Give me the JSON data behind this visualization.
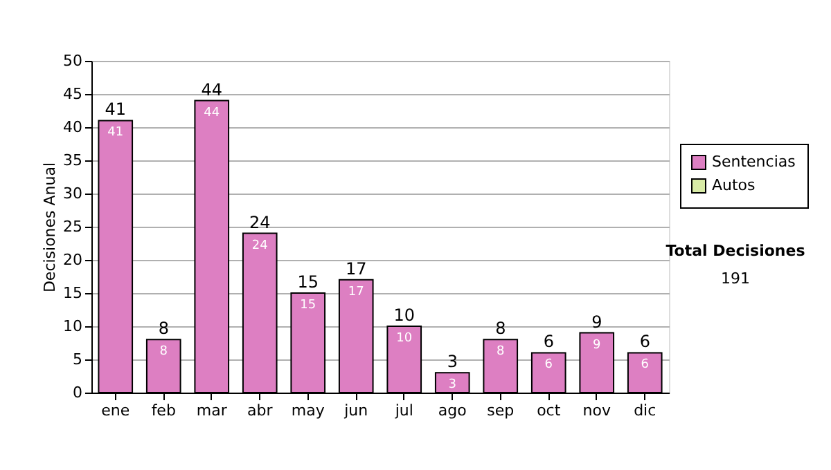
{
  "chart_data": {
    "type": "bar",
    "stacked": true,
    "ylabel": "Decisiones Anual",
    "categories": [
      "ene",
      "feb",
      "mar",
      "abr",
      "may",
      "jun",
      "jul",
      "ago",
      "sep",
      "oct",
      "nov",
      "dic"
    ],
    "series": [
      {
        "name": "Sentencias",
        "color": "#dd7fc2",
        "values": [
          41,
          8,
          44,
          24,
          15,
          17,
          10,
          3,
          8,
          6,
          9,
          6
        ],
        "value_labels": [
          "41",
          "8",
          "44",
          "24",
          "15",
          "17",
          "10",
          "3",
          "8",
          "6",
          "9",
          "6"
        ]
      },
      {
        "name": "Autos",
        "color": "#d8eba6",
        "values": [
          null,
          null,
          null,
          null,
          null,
          null,
          null,
          null,
          null,
          null,
          null,
          null
        ]
      }
    ],
    "totals": [
      "41",
      "8",
      "44",
      "24",
      "15",
      "17",
      "10",
      "3",
      "8",
      "6",
      "9",
      "6"
    ],
    "ylim": [
      0,
      50
    ],
    "yticks": [
      0,
      5,
      10,
      15,
      20,
      25,
      30,
      35,
      40,
      45,
      50
    ],
    "grid": "y",
    "legend": "right",
    "annotations": [
      "Total Decisiones",
      "191"
    ]
  }
}
